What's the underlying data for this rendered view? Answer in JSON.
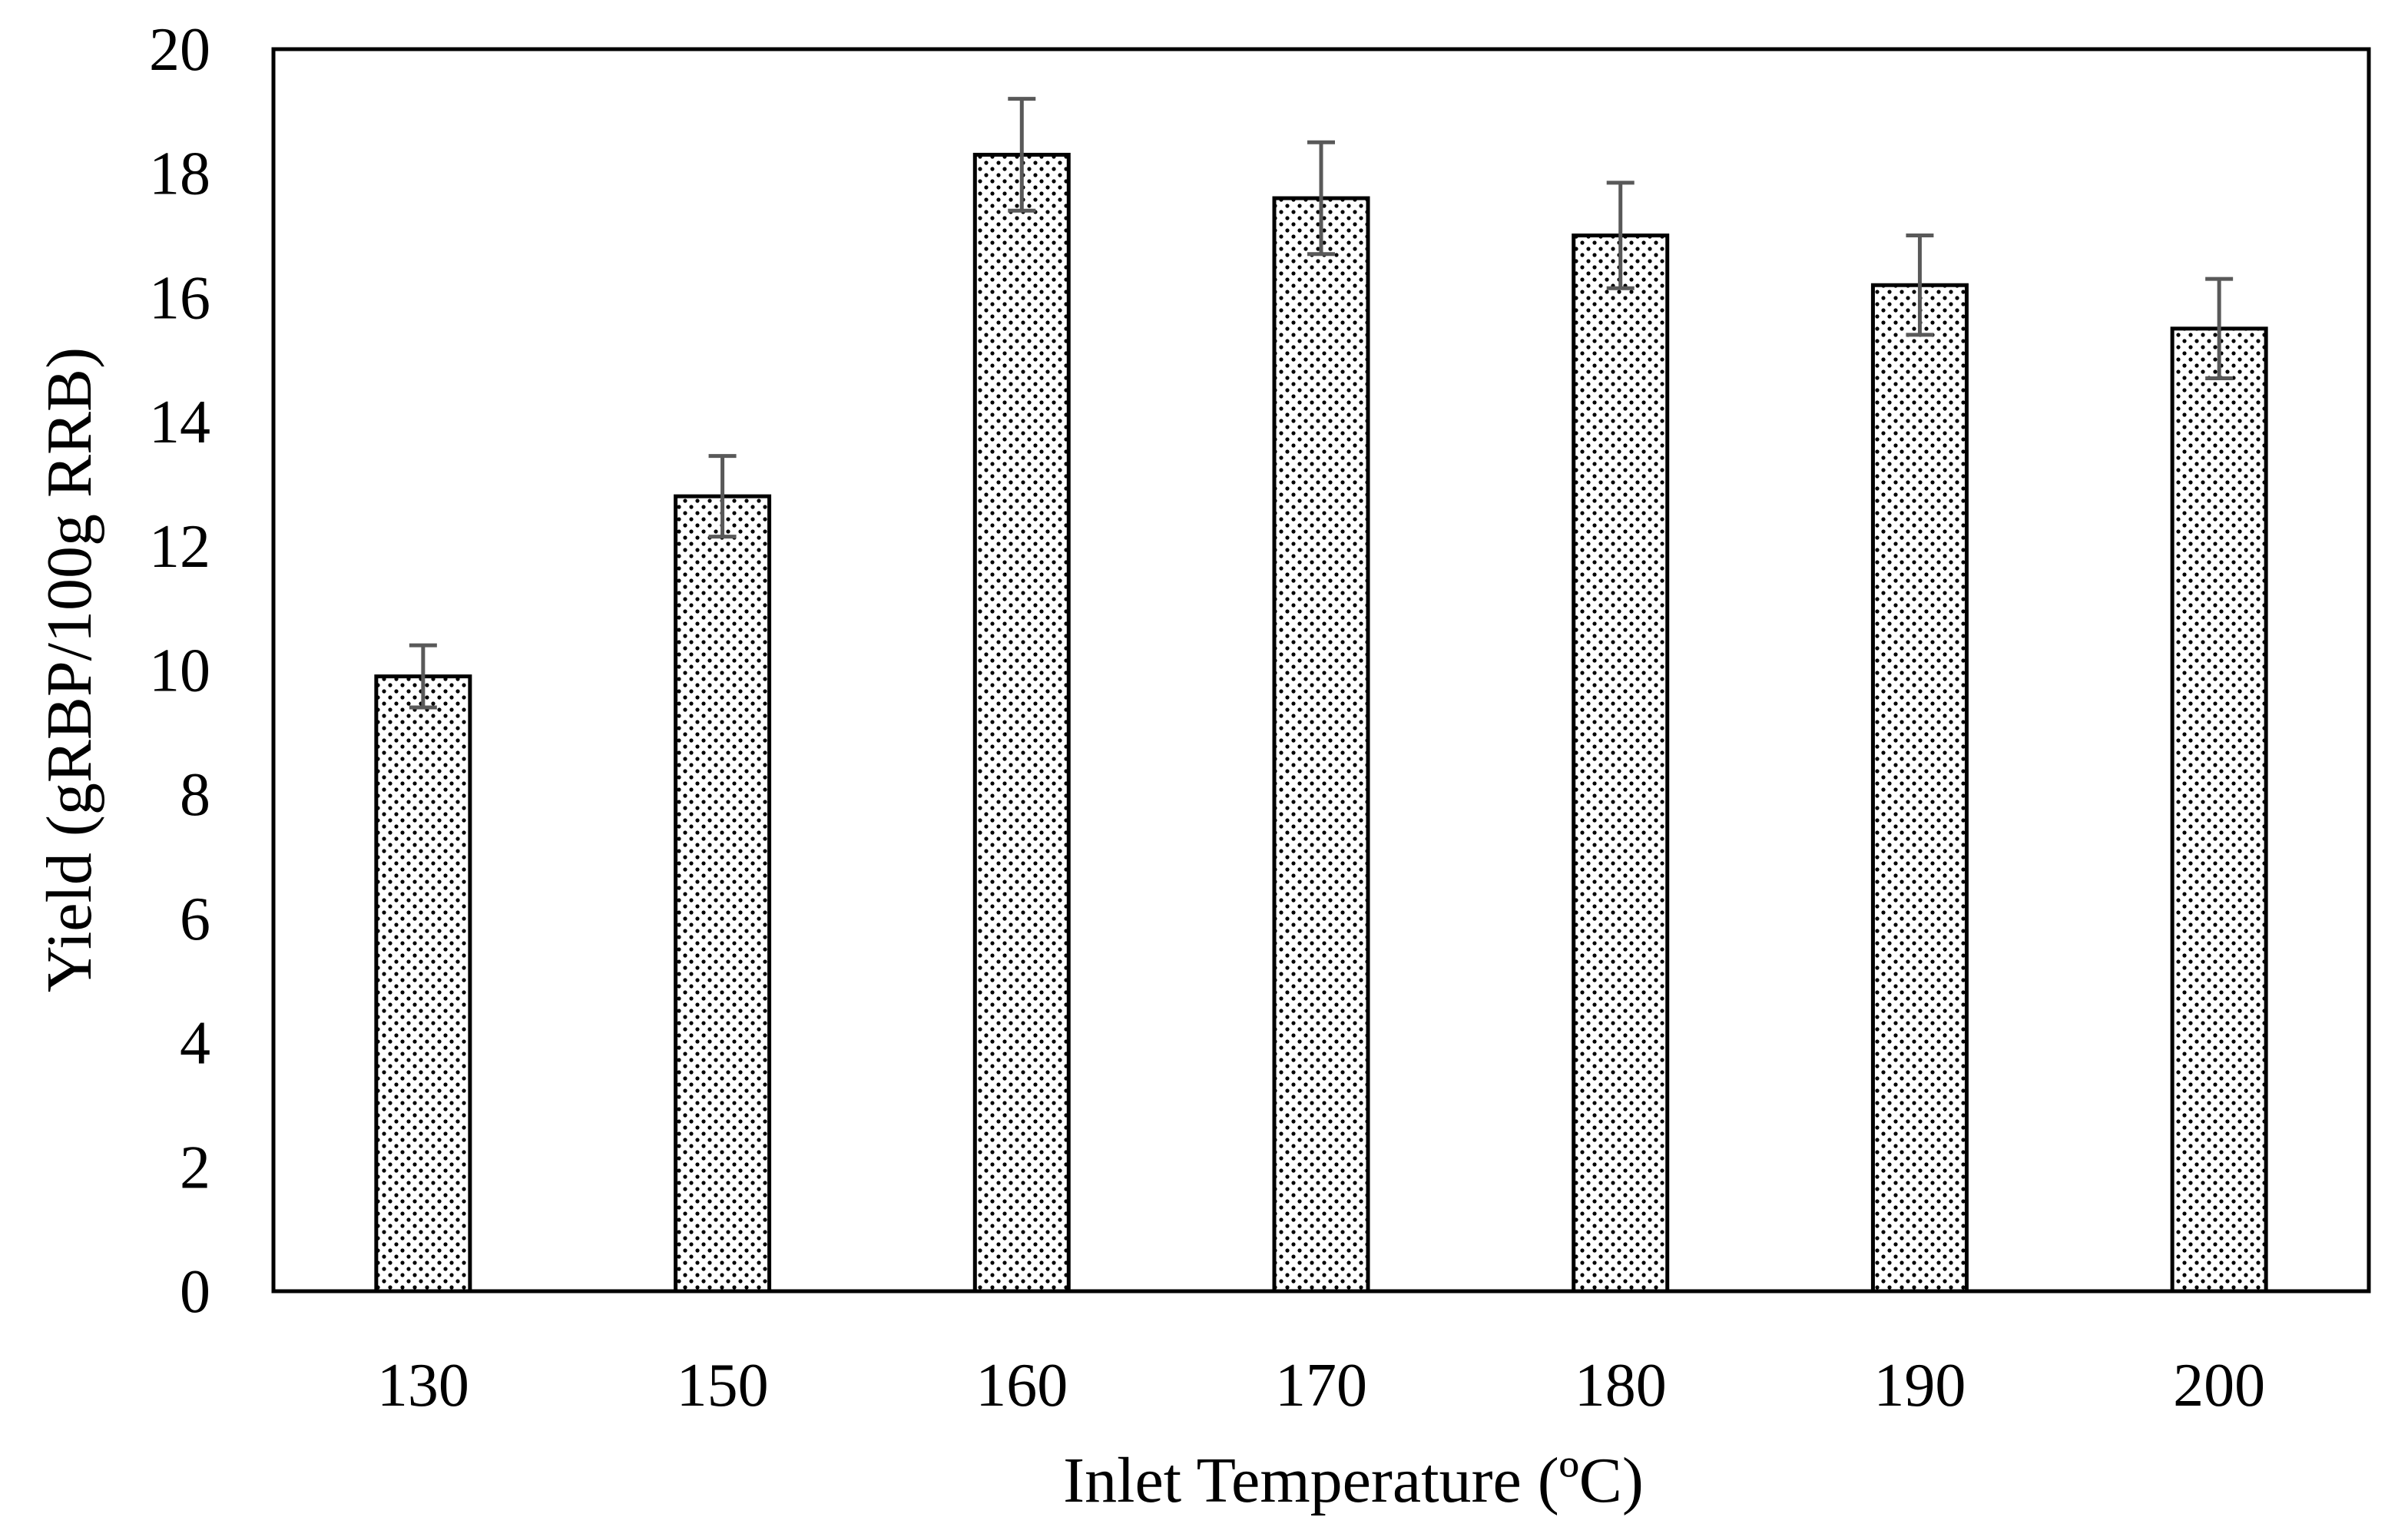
{
  "chart_data": {
    "type": "bar",
    "title": "",
    "xlabel": "Inlet Temperature (ºC)",
    "ylabel": "Yield (gRBP/100g RRB)",
    "categories": [
      "130",
      "150",
      "160",
      "170",
      "180",
      "190",
      "200"
    ],
    "values": [
      9.9,
      12.8,
      18.3,
      17.6,
      17.0,
      16.2,
      15.5
    ],
    "errors": [
      0.5,
      0.65,
      0.9,
      0.9,
      0.85,
      0.8,
      0.8
    ],
    "ylim": [
      0,
      20
    ],
    "yticks": [
      "0",
      "2",
      "4",
      "6",
      "8",
      "10",
      "12",
      "14",
      "16",
      "18",
      "20"
    ],
    "grid": false,
    "legend": "none",
    "bar_pattern": "dotted",
    "colors": {
      "bar_fill": "#ffffff",
      "bar_dots": "#000000",
      "bar_edge": "#000000",
      "error_bar": "#595959",
      "axis": "#000000"
    }
  }
}
